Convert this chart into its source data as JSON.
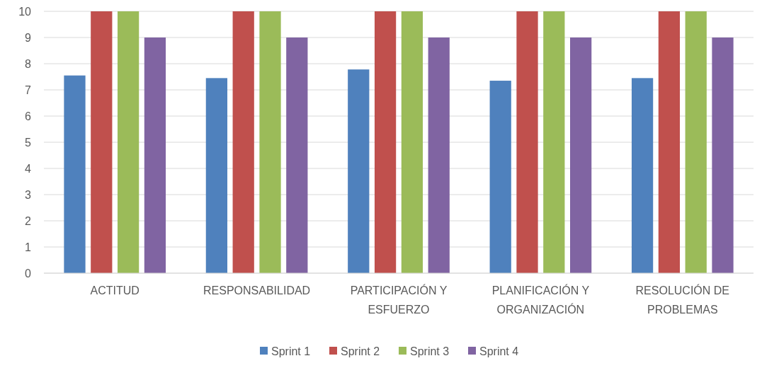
{
  "chart_data": {
    "type": "bar",
    "categories": [
      "ACTITUD",
      "RESPONSABILIDAD",
      "PARTICIPACIÓN Y ESFUERZO",
      "PLANIFICACIÓN Y ORGANIZACIÓN",
      "RESOLUCIÓN DE PROBLEMAS"
    ],
    "series": [
      {
        "name": "Sprint 1",
        "color": "#4f81bd",
        "values": [
          7.55,
          7.45,
          7.78,
          7.35,
          7.45
        ]
      },
      {
        "name": "Sprint 2",
        "color": "#c0504d",
        "values": [
          10,
          10,
          10,
          10,
          10
        ]
      },
      {
        "name": "Sprint 3",
        "color": "#9bbb59",
        "values": [
          10,
          10,
          10,
          10,
          10
        ]
      },
      {
        "name": "Sprint 4",
        "color": "#8064a2",
        "values": [
          9,
          9,
          9,
          9,
          9
        ]
      }
    ],
    "ylim": [
      0,
      10
    ],
    "yticks": [
      0,
      1,
      2,
      3,
      4,
      5,
      6,
      7,
      8,
      9,
      10
    ],
    "grid": "y",
    "legend": "bottom"
  }
}
